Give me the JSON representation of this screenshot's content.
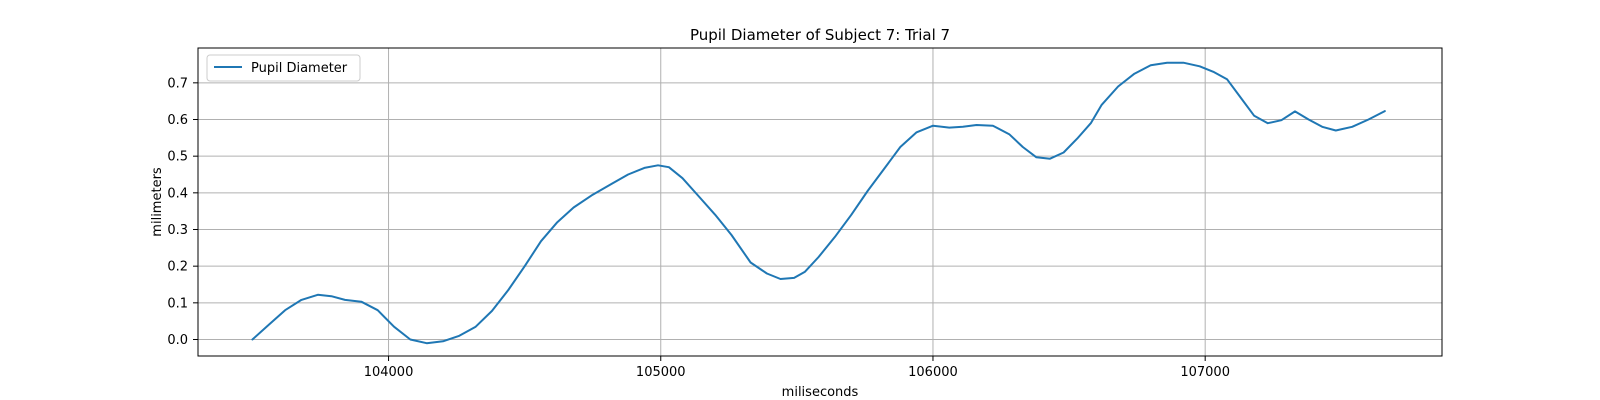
{
  "chart_data": {
    "type": "line",
    "title": "Pupil Diameter of Subject 7: Trial 7",
    "xlabel": "miliseconds",
    "ylabel": "milimeters",
    "xlim": [
      103300,
      107870
    ],
    "ylim": [
      -0.045,
      0.795
    ],
    "xticks": [
      104000,
      105000,
      106000,
      107000
    ],
    "yticks": [
      0.0,
      0.1,
      0.2,
      0.3,
      0.4,
      0.5,
      0.6,
      0.7
    ],
    "ytick_labels": [
      "0.0",
      "0.1",
      "0.2",
      "0.3",
      "0.4",
      "0.5",
      "0.6",
      "0.7"
    ],
    "grid": true,
    "legend": {
      "position": "upper-left",
      "entries": [
        "Pupil Diameter"
      ]
    },
    "series": [
      {
        "name": "Pupil Diameter",
        "color": "#1f77b4",
        "x": [
          103500,
          103560,
          103620,
          103680,
          103740,
          103790,
          103840,
          103900,
          103960,
          104020,
          104080,
          104140,
          104200,
          104260,
          104320,
          104380,
          104440,
          104500,
          104560,
          104620,
          104680,
          104750,
          104820,
          104880,
          104940,
          104990,
          105030,
          105080,
          105140,
          105200,
          105260,
          105330,
          105390,
          105440,
          105490,
          105530,
          105580,
          105640,
          105700,
          105760,
          105820,
          105880,
          105940,
          106000,
          106060,
          106110,
          106160,
          106220,
          106280,
          106330,
          106380,
          106430,
          106480,
          106530,
          106580,
          106620,
          106680,
          106740,
          106800,
          106860,
          106920,
          106980,
          107030,
          107080,
          107130,
          107180,
          107230,
          107280,
          107330,
          107380,
          107430,
          107480,
          107540,
          107600,
          107660
        ],
        "values": [
          0.0,
          0.04,
          0.08,
          0.108,
          0.122,
          0.118,
          0.108,
          0.103,
          0.08,
          0.035,
          0.0,
          -0.01,
          -0.005,
          0.01,
          0.035,
          0.078,
          0.135,
          0.2,
          0.268,
          0.32,
          0.36,
          0.395,
          0.425,
          0.45,
          0.468,
          0.475,
          0.47,
          0.44,
          0.39,
          0.34,
          0.285,
          0.21,
          0.18,
          0.165,
          0.168,
          0.185,
          0.225,
          0.28,
          0.34,
          0.405,
          0.465,
          0.525,
          0.565,
          0.583,
          0.578,
          0.58,
          0.585,
          0.583,
          0.56,
          0.525,
          0.497,
          0.493,
          0.51,
          0.548,
          0.59,
          0.64,
          0.69,
          0.725,
          0.748,
          0.755,
          0.755,
          0.745,
          0.73,
          0.71,
          0.66,
          0.61,
          0.59,
          0.598,
          0.622,
          0.6,
          0.58,
          0.57,
          0.58,
          0.6,
          0.623
        ]
      }
    ]
  }
}
